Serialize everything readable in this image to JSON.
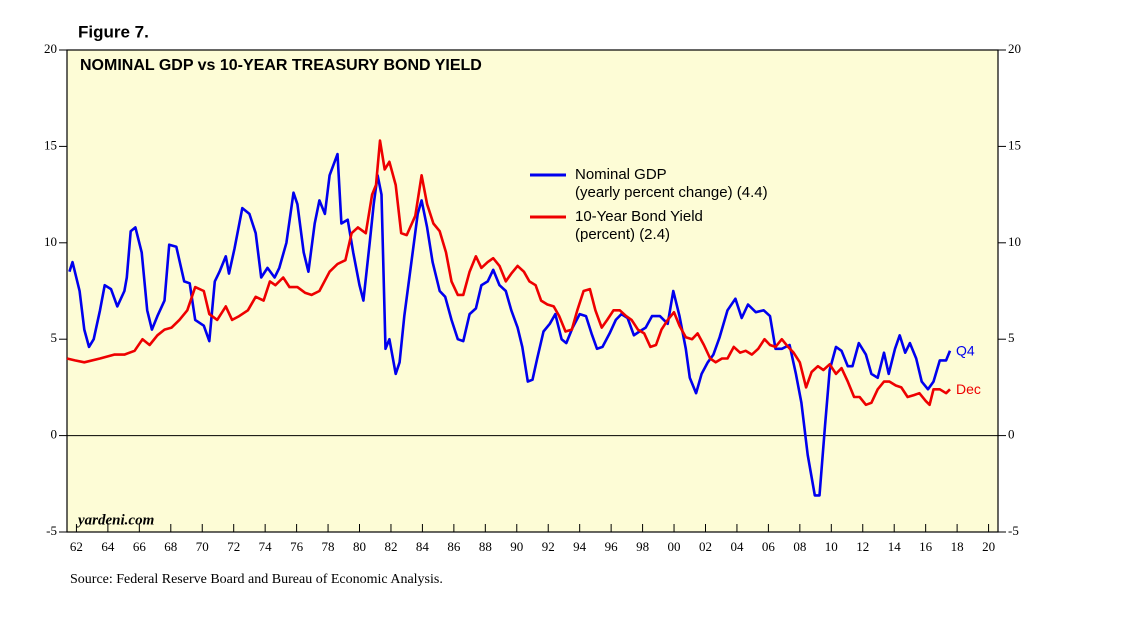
{
  "chart_data": {
    "type": "line",
    "figure_label": "Figure 7.",
    "title": "NOMINAL GDP vs 10-YEAR TREASURY BOND YIELD",
    "watermark": "yardeni.com",
    "source": "Source: Federal Reserve Board and Bureau of Economic Analysis.",
    "background": "#fdfcd6",
    "xlim": [
      1961.4,
      2020.6
    ],
    "ylim": [
      -5,
      20
    ],
    "yticks": [
      20,
      15,
      10,
      5,
      0,
      -5
    ],
    "xticks": [
      {
        "value": 1962,
        "label": "62"
      },
      {
        "value": 1964,
        "label": "64"
      },
      {
        "value": 1966,
        "label": "66"
      },
      {
        "value": 1968,
        "label": "68"
      },
      {
        "value": 1970,
        "label": "70"
      },
      {
        "value": 1972,
        "label": "72"
      },
      {
        "value": 1974,
        "label": "74"
      },
      {
        "value": 1976,
        "label": "76"
      },
      {
        "value": 1978,
        "label": "78"
      },
      {
        "value": 1980,
        "label": "80"
      },
      {
        "value": 1982,
        "label": "82"
      },
      {
        "value": 1984,
        "label": "84"
      },
      {
        "value": 1986,
        "label": "86"
      },
      {
        "value": 1988,
        "label": "88"
      },
      {
        "value": 1990,
        "label": "90"
      },
      {
        "value": 1992,
        "label": "92"
      },
      {
        "value": 1994,
        "label": "94"
      },
      {
        "value": 1996,
        "label": "96"
      },
      {
        "value": 1998,
        "label": "98"
      },
      {
        "value": 2000,
        "label": "00"
      },
      {
        "value": 2002,
        "label": "02"
      },
      {
        "value": 2004,
        "label": "04"
      },
      {
        "value": 2006,
        "label": "06"
      },
      {
        "value": 2008,
        "label": "08"
      },
      {
        "value": 2010,
        "label": "10"
      },
      {
        "value": 2012,
        "label": "12"
      },
      {
        "value": 2014,
        "label": "14"
      },
      {
        "value": 2016,
        "label": "16"
      },
      {
        "value": 2018,
        "label": "18"
      },
      {
        "value": 2020,
        "label": "20"
      }
    ],
    "series": [
      {
        "name": "Nominal GDP",
        "note": "(yearly percent change) (4.4)",
        "end_label": "Q4",
        "color": "#0000ee",
        "x": [
          1961.55,
          1961.75,
          1962.2,
          1962.5,
          1962.8,
          1963.1,
          1963.5,
          1963.8,
          1964.2,
          1964.6,
          1965.05,
          1965.2,
          1965.45,
          1965.75,
          1966.15,
          1966.5,
          1966.8,
          1967.15,
          1967.6,
          1967.9,
          1968.35,
          1968.85,
          1969.2,
          1969.55,
          1970.1,
          1970.45,
          1970.8,
          1971.1,
          1971.5,
          1971.7,
          1972.05,
          1972.55,
          1973.0,
          1973.4,
          1973.75,
          1974.15,
          1974.6,
          1974.9,
          1975.35,
          1975.8,
          1976.05,
          1976.45,
          1976.75,
          1977.15,
          1977.45,
          1977.8,
          1978.1,
          1978.6,
          1978.85,
          1979.25,
          1979.6,
          1980.0,
          1980.25,
          1980.65,
          1980.9,
          1981.15,
          1981.4,
          1981.65,
          1981.9,
          1982.3,
          1982.55,
          1982.85,
          1983.3,
          1983.7,
          1983.95,
          1984.3,
          1984.65,
          1985.1,
          1985.45,
          1985.85,
          1986.25,
          1986.6,
          1987.0,
          1987.4,
          1987.75,
          1988.15,
          1988.5,
          1988.9,
          1989.3,
          1989.65,
          1990.05,
          1990.35,
          1990.7,
          1991.0,
          1991.3,
          1991.7,
          1992.1,
          1992.45,
          1992.85,
          1993.15,
          1993.55,
          1994.0,
          1994.4,
          1994.75,
          1995.1,
          1995.45,
          1995.9,
          1996.3,
          1996.65,
          1997.05,
          1997.45,
          1997.8,
          1998.2,
          1998.6,
          1999.1,
          1999.6,
          1999.95,
          2000.35,
          2000.75,
          2001.0,
          2001.4,
          2001.75,
          2002.15,
          2002.5,
          2002.9,
          2003.4,
          2003.9,
          2004.3,
          2004.7,
          2005.2,
          2005.7,
          2006.1,
          2006.45,
          2006.85,
          2007.35,
          2007.75,
          2008.1,
          2008.5,
          2008.95,
          2009.25,
          2009.6,
          2009.9,
          2010.3,
          2010.65,
          2011.05,
          2011.35,
          2011.75,
          2012.2,
          2012.55,
          2012.95,
          2013.35,
          2013.65,
          2014.05,
          2014.35,
          2014.7,
          2015.0,
          2015.4,
          2015.75,
          2016.15,
          2016.5,
          2016.9,
          2017.3,
          2017.55
        ],
        "values": [
          8.5,
          9.0,
          7.5,
          5.5,
          4.6,
          5.0,
          6.5,
          7.8,
          7.6,
          6.7,
          7.5,
          8.2,
          10.6,
          10.8,
          9.5,
          6.5,
          5.5,
          6.2,
          7.0,
          9.9,
          9.8,
          8.0,
          7.9,
          6.0,
          5.7,
          4.9,
          8.0,
          8.5,
          9.3,
          8.4,
          9.7,
          11.8,
          11.5,
          10.5,
          8.2,
          8.7,
          8.2,
          8.7,
          10.0,
          12.6,
          12.0,
          9.5,
          8.5,
          11.0,
          12.2,
          11.5,
          13.5,
          14.6,
          11.0,
          11.2,
          9.5,
          7.8,
          7.0,
          10.0,
          12.0,
          13.5,
          12.5,
          4.5,
          5.0,
          3.2,
          3.8,
          6.2,
          9.0,
          11.5,
          12.2,
          10.8,
          9.0,
          7.5,
          7.2,
          6.0,
          5.0,
          4.9,
          6.3,
          6.6,
          7.8,
          8.0,
          8.6,
          7.8,
          7.5,
          6.5,
          5.6,
          4.6,
          2.8,
          2.9,
          4.0,
          5.4,
          5.8,
          6.3,
          5.0,
          4.8,
          5.6,
          6.3,
          6.2,
          5.3,
          4.5,
          4.6,
          5.3,
          6.0,
          6.3,
          6.1,
          5.2,
          5.4,
          5.6,
          6.2,
          6.2,
          5.8,
          7.5,
          6.2,
          4.5,
          3.0,
          2.2,
          3.2,
          3.8,
          4.2,
          5.1,
          6.5,
          7.1,
          6.1,
          6.8,
          6.4,
          6.5,
          6.2,
          4.5,
          4.5,
          4.7,
          3.2,
          1.7,
          -1.0,
          -3.1,
          -3.1,
          0.5,
          3.4,
          4.6,
          4.4,
          3.6,
          3.6,
          4.8,
          4.2,
          3.2,
          3.0,
          4.3,
          3.2,
          4.5,
          5.2,
          4.3,
          4.8,
          4.0,
          2.8,
          2.4,
          2.8,
          3.9,
          3.9,
          4.4
        ]
      },
      {
        "name": "10-Year Bond Yield",
        "note": "(percent) (2.4)",
        "end_label": "Dec",
        "color": "#ee0000",
        "x": [
          1961.4,
          1961.9,
          1962.5,
          1963.5,
          1964.4,
          1965.05,
          1965.7,
          1966.2,
          1966.65,
          1967.15,
          1967.6,
          1968.05,
          1968.55,
          1969.05,
          1969.55,
          1970.1,
          1970.45,
          1970.95,
          1971.5,
          1971.9,
          1972.35,
          1972.9,
          1973.4,
          1973.9,
          1974.3,
          1974.65,
          1975.15,
          1975.55,
          1976.05,
          1976.55,
          1976.95,
          1977.45,
          1978.1,
          1978.6,
          1979.1,
          1979.5,
          1979.9,
          1980.4,
          1980.8,
          1981.05,
          1981.3,
          1981.6,
          1981.9,
          1982.3,
          1982.65,
          1983.0,
          1983.55,
          1983.95,
          1984.3,
          1984.7,
          1985.1,
          1985.5,
          1985.85,
          1986.25,
          1986.6,
          1987.0,
          1987.4,
          1987.75,
          1988.15,
          1988.5,
          1988.9,
          1989.3,
          1989.65,
          1990.05,
          1990.45,
          1990.8,
          1991.2,
          1991.55,
          1991.95,
          1992.35,
          1992.7,
          1993.1,
          1993.5,
          1993.85,
          1994.25,
          1994.65,
          1995.0,
          1995.4,
          1995.75,
          1996.15,
          1996.55,
          1996.95,
          1997.3,
          1997.7,
          1998.1,
          1998.5,
          1998.85,
          1999.2,
          1999.6,
          2000.0,
          2000.35,
          2000.75,
          2001.15,
          2001.5,
          2001.9,
          2002.3,
          2002.65,
          2003.05,
          2003.4,
          2003.8,
          2004.2,
          2004.55,
          2004.95,
          2005.35,
          2005.75,
          2006.1,
          2006.45,
          2006.85,
          2007.25,
          2007.6,
          2008.0,
          2008.4,
          2008.75,
          2009.15,
          2009.5,
          2009.9,
          2010.3,
          2010.65,
          2011.05,
          2011.45,
          2011.8,
          2012.2,
          2012.55,
          2012.95,
          2013.35,
          2013.7,
          2014.1,
          2014.45,
          2014.85,
          2015.25,
          2015.6,
          2016.0,
          2016.25,
          2016.5,
          2016.9,
          2017.3,
          2017.55
        ],
        "values": [
          4.0,
          3.9,
          3.8,
          4.0,
          4.2,
          4.2,
          4.4,
          5.0,
          4.7,
          5.2,
          5.5,
          5.6,
          6.0,
          6.5,
          7.7,
          7.5,
          6.3,
          6.0,
          6.7,
          6.0,
          6.2,
          6.5,
          7.2,
          7.0,
          8.0,
          7.8,
          8.2,
          7.7,
          7.7,
          7.4,
          7.3,
          7.5,
          8.5,
          8.9,
          9.1,
          10.5,
          10.8,
          10.5,
          12.5,
          13.0,
          15.3,
          13.8,
          14.2,
          13.0,
          10.5,
          10.4,
          11.4,
          13.5,
          12.0,
          11.0,
          10.6,
          9.5,
          8.0,
          7.3,
          7.3,
          8.5,
          9.3,
          8.7,
          9.0,
          9.2,
          8.8,
          8.0,
          8.4,
          8.8,
          8.5,
          8.0,
          7.8,
          7.0,
          6.8,
          6.7,
          6.2,
          5.4,
          5.5,
          6.5,
          7.5,
          7.6,
          6.5,
          5.6,
          6.0,
          6.5,
          6.5,
          6.2,
          6.0,
          5.5,
          5.3,
          4.6,
          4.7,
          5.5,
          6.0,
          6.4,
          5.7,
          5.1,
          5.0,
          5.3,
          4.7,
          4.0,
          3.8,
          4.0,
          4.0,
          4.6,
          4.3,
          4.4,
          4.2,
          4.5,
          5.0,
          4.7,
          4.6,
          5.0,
          4.6,
          4.3,
          3.8,
          2.5,
          3.3,
          3.6,
          3.4,
          3.7,
          3.2,
          3.5,
          2.8,
          2.0,
          2.0,
          1.6,
          1.7,
          2.4,
          2.8,
          2.8,
          2.6,
          2.5,
          2.0,
          2.1,
          2.2,
          1.8,
          1.6,
          2.4,
          2.4,
          2.2,
          2.4
        ]
      }
    ]
  }
}
